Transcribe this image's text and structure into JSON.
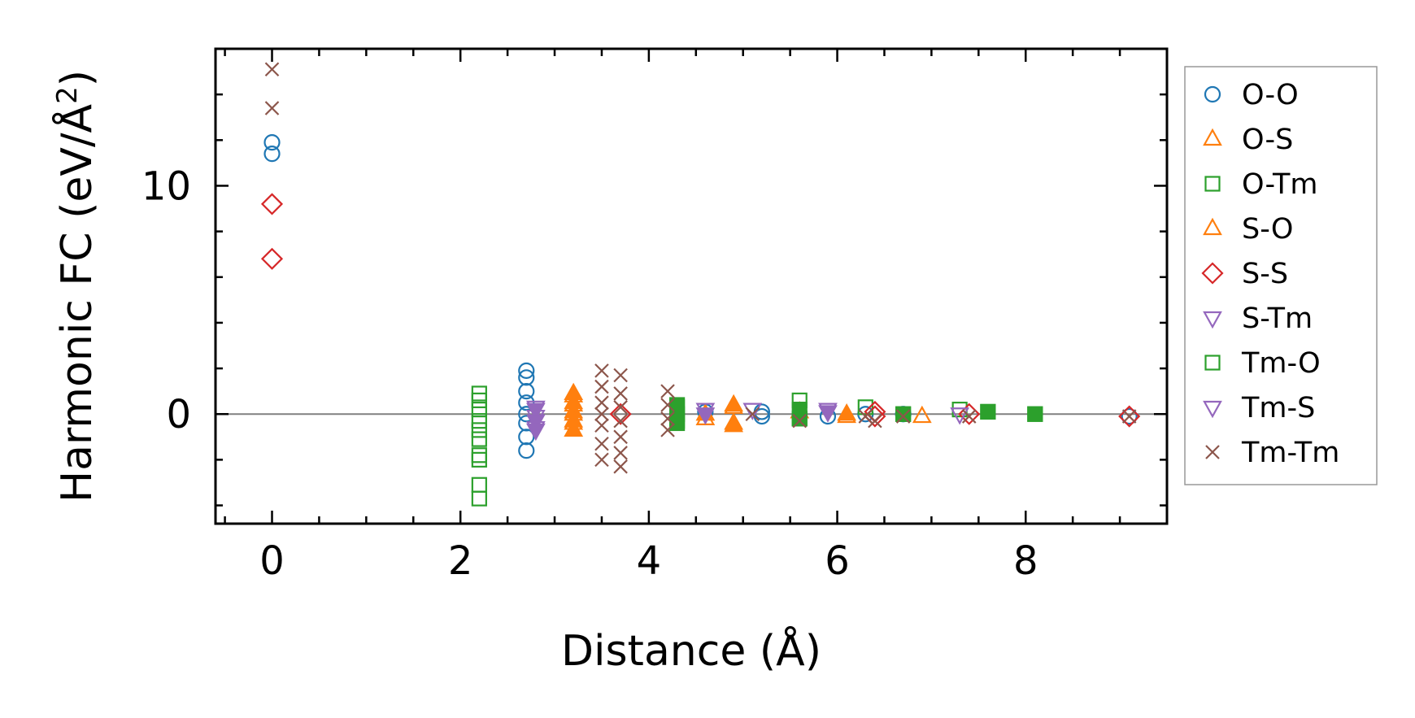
{
  "chart_data": {
    "type": "scatter",
    "xlabel": "Distance (Å)",
    "ylabel": "Harmonic FC (eV/Å",
    "ylabel_sup": "2",
    "ylabel_end": ")",
    "xlim": [
      -0.6,
      9.5
    ],
    "ylim": [
      -4.8,
      16.0
    ],
    "x_ticks": [
      0,
      2,
      4,
      6,
      8
    ],
    "x_tick_labels": [
      "0",
      "2",
      "4",
      "6",
      "8"
    ],
    "y_ticks": [
      0,
      10
    ],
    "y_tick_labels": [
      "0",
      "10"
    ],
    "grid": false,
    "zero_line": true,
    "legend_position": "outside-right",
    "series": [
      {
        "name": "O-O",
        "marker": "circle",
        "filled": false,
        "color": "#1f77b4",
        "points": [
          [
            0,
            11.9
          ],
          [
            0,
            11.4
          ],
          [
            2.7,
            1.9
          ],
          [
            2.7,
            1.6
          ],
          [
            2.7,
            1.0
          ],
          [
            2.7,
            0.5
          ],
          [
            2.7,
            0.0
          ],
          [
            2.7,
            -0.4
          ],
          [
            2.7,
            -1.0
          ],
          [
            2.7,
            -1.6
          ],
          [
            4.6,
            0.1
          ],
          [
            5.2,
            0.1
          ],
          [
            5.2,
            -0.1
          ],
          [
            5.9,
            -0.1
          ],
          [
            6.3,
            0.0
          ],
          [
            6.7,
            0.0
          ],
          [
            9.1,
            -0.1
          ]
        ]
      },
      {
        "name": "O-S",
        "marker": "triangle-up",
        "filled": false,
        "color": "#ff7f0e",
        "points": [
          [
            3.2,
            0.8
          ],
          [
            3.2,
            0.4
          ],
          [
            3.2,
            0.0
          ],
          [
            3.2,
            -0.4
          ],
          [
            4.6,
            -0.2
          ],
          [
            4.9,
            0.3
          ],
          [
            4.9,
            -0.4
          ],
          [
            5.6,
            0.1
          ],
          [
            6.1,
            -0.1
          ],
          [
            6.9,
            -0.1
          ]
        ]
      },
      {
        "name": "O-Tm",
        "marker": "square",
        "filled": false,
        "color": "#2ca02c",
        "points": [
          [
            2.2,
            0.9
          ],
          [
            2.2,
            0.6
          ],
          [
            2.2,
            0.2
          ],
          [
            2.2,
            -0.3
          ],
          [
            2.2,
            -0.7
          ],
          [
            2.2,
            -1.1
          ],
          [
            2.2,
            -1.8
          ],
          [
            2.2,
            -2.0
          ],
          [
            2.2,
            -3.1
          ],
          [
            2.2,
            -3.7
          ],
          [
            4.3,
            0.3
          ],
          [
            4.3,
            -0.3
          ],
          [
            5.6,
            0.6
          ],
          [
            5.6,
            -0.2
          ],
          [
            6.3,
            0.3
          ],
          [
            6.7,
            0.0
          ],
          [
            7.3,
            0.2
          ],
          [
            7.6,
            0.1
          ],
          [
            8.1,
            0.0
          ]
        ]
      },
      {
        "name": "S-O",
        "marker": "triangle-up",
        "filled": true,
        "color": "#ff7f0e",
        "points": [
          [
            3.2,
            0.9
          ],
          [
            3.2,
            0.5
          ],
          [
            3.2,
            0.1
          ],
          [
            3.2,
            -0.3
          ],
          [
            3.2,
            -0.7
          ],
          [
            4.6,
            0.0
          ],
          [
            4.9,
            0.4
          ],
          [
            4.9,
            -0.5
          ],
          [
            6.1,
            0.0
          ]
        ]
      },
      {
        "name": "S-S",
        "marker": "diamond",
        "filled": false,
        "color": "#d62728",
        "points": [
          [
            0,
            9.2
          ],
          [
            0,
            6.8
          ],
          [
            3.7,
            0.0
          ],
          [
            6.4,
            0.1
          ],
          [
            6.4,
            -0.1
          ],
          [
            7.4,
            0.0
          ],
          [
            9.1,
            -0.1
          ]
        ]
      },
      {
        "name": "S-Tm",
        "marker": "triangle-down",
        "filled": false,
        "color": "#9467bd",
        "points": [
          [
            2.8,
            0.3
          ],
          [
            2.8,
            -0.1
          ],
          [
            2.8,
            -0.6
          ],
          [
            4.6,
            0.2
          ],
          [
            5.1,
            0.2
          ],
          [
            5.9,
            0.2
          ],
          [
            7.3,
            0.0
          ]
        ]
      },
      {
        "name": "Tm-O",
        "marker": "square",
        "filled": true,
        "color": "#2ca02c",
        "points": [
          [
            4.3,
            0.4
          ],
          [
            4.3,
            0.0
          ],
          [
            4.3,
            -0.4
          ],
          [
            5.6,
            0.2
          ],
          [
            5.6,
            -0.2
          ],
          [
            6.7,
            0.0
          ],
          [
            7.6,
            0.1
          ],
          [
            8.1,
            0.0
          ]
        ]
      },
      {
        "name": "Tm-S",
        "marker": "triangle-down",
        "filled": true,
        "color": "#9467bd",
        "points": [
          [
            2.8,
            0.2
          ],
          [
            2.8,
            -0.3
          ],
          [
            2.8,
            -0.7
          ],
          [
            4.6,
            0.0
          ],
          [
            5.9,
            0.1
          ]
        ]
      },
      {
        "name": "Tm-Tm",
        "marker": "x",
        "filled": false,
        "color": "#8c564b",
        "points": [
          [
            0,
            15.1
          ],
          [
            0,
            13.4
          ],
          [
            3.5,
            1.9
          ],
          [
            3.5,
            1.2
          ],
          [
            3.5,
            0.5
          ],
          [
            3.5,
            0.0
          ],
          [
            3.5,
            -0.5
          ],
          [
            3.5,
            -1.3
          ],
          [
            3.5,
            -2.0
          ],
          [
            3.7,
            1.7
          ],
          [
            3.7,
            0.9
          ],
          [
            3.7,
            0.3
          ],
          [
            3.7,
            -0.3
          ],
          [
            3.7,
            -1.0
          ],
          [
            3.7,
            -1.7
          ],
          [
            3.7,
            -2.3
          ],
          [
            4.2,
            1.0
          ],
          [
            4.2,
            0.4
          ],
          [
            4.2,
            -0.2
          ],
          [
            4.2,
            -0.7
          ],
          [
            5.1,
            0.0
          ],
          [
            5.6,
            -0.3
          ],
          [
            6.3,
            -0.1
          ],
          [
            6.4,
            -0.3
          ],
          [
            6.7,
            -0.1
          ],
          [
            7.4,
            -0.1
          ],
          [
            9.1,
            -0.1
          ]
        ]
      }
    ]
  }
}
